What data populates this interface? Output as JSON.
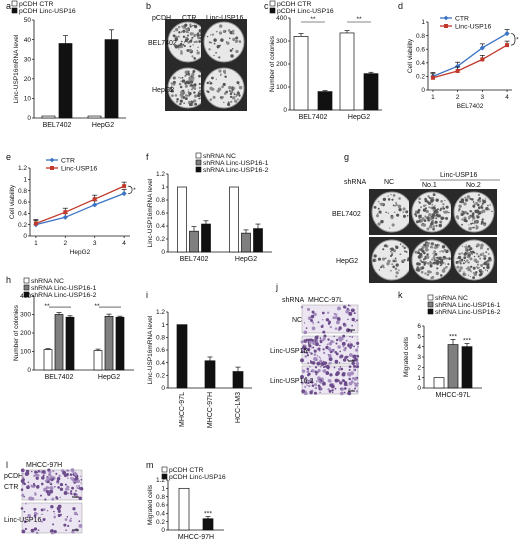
{
  "colors": {
    "ctr": "#3b73c4",
    "linc": "#c0392b",
    "black": "#111111",
    "grey": "#7f7f7f",
    "white": "#ffffff",
    "dish": "#d6d6d6",
    "stain": "#6d4c8c"
  },
  "panel_letters": [
    "a",
    "b",
    "c",
    "d",
    "e",
    "f",
    "g",
    "h",
    "i",
    "j",
    "k",
    "l",
    "m"
  ],
  "images": {
    "b": {
      "columns": [
        "pCDH",
        "CTR",
        "Linc-USP16"
      ],
      "rows": [
        "BEL7402",
        "HepG2"
      ]
    },
    "g": {
      "header": "shRNA",
      "nc": "NC",
      "group": "Linc-USP16",
      "columns": [
        "No.1",
        "No.2"
      ],
      "rows": [
        "BEL7402",
        "HepG2"
      ]
    },
    "j": {
      "header": "shRNA",
      "cell": "MHCC-97L",
      "rows": [
        "NC",
        "Linc-USP16-",
        "Linc-USP16-2"
      ]
    },
    "l": {
      "header": "pCDH",
      "cell": "MHCC-97H",
      "rows": [
        "CTR",
        "Linc-USP16"
      ]
    }
  },
  "chart_data": [
    {
      "id": "a",
      "type": "bar",
      "ylabel": "Linc-USP16mRNA level",
      "ylim": [
        0,
        50
      ],
      "yticks": [
        0,
        10,
        20,
        30,
        40,
        50
      ],
      "categories": [
        "BEL7402",
        "HepG2"
      ],
      "series": [
        {
          "name": "pCDH  CTR",
          "values": [
            1,
            1
          ],
          "err": [
            0,
            0
          ]
        },
        {
          "name": "pCDH  Linc-USP16",
          "values": [
            38,
            40
          ],
          "err": [
            4,
            5
          ]
        }
      ]
    },
    {
      "id": "c",
      "type": "bar",
      "ylabel": "Number of colonies",
      "ylim": [
        0,
        400
      ],
      "yticks": [
        0,
        100,
        200,
        300,
        400
      ],
      "categories": [
        "BEL7402",
        "HepG2"
      ],
      "series": [
        {
          "name": "pCDH  CTR",
          "values": [
            320,
            335
          ],
          "err": [
            12,
            10
          ]
        },
        {
          "name": "pCDH  Linc-USP16",
          "values": [
            80,
            158
          ],
          "err": [
            4,
            6
          ]
        }
      ],
      "significance": [
        "**",
        "**"
      ]
    },
    {
      "id": "d",
      "type": "line",
      "xlabel": "BEL7402",
      "ylabel": "Cell viability",
      "ylim": [
        0,
        1
      ],
      "yticks": [
        0,
        0.2,
        0.4,
        0.6,
        0.8,
        1
      ],
      "x": [
        1,
        2,
        3,
        4
      ],
      "series": [
        {
          "name": "CTR",
          "values": [
            0.2,
            0.35,
            0.62,
            0.83
          ]
        },
        {
          "name": "Linc-USP16",
          "values": [
            0.18,
            0.28,
            0.45,
            0.66
          ]
        }
      ],
      "significance": "*"
    },
    {
      "id": "e",
      "type": "line",
      "xlabel": "HepG2",
      "ylabel": "Cell viability",
      "ylim": [
        0,
        1.2
      ],
      "yticks": [
        0,
        0.2,
        0.4,
        0.6,
        0.8,
        1,
        1.2
      ],
      "x": [
        1,
        2,
        3,
        4
      ],
      "series": [
        {
          "name": "CTR",
          "values": [
            0.2,
            0.33,
            0.55,
            0.75
          ]
        },
        {
          "name": "Linc-USP16",
          "values": [
            0.22,
            0.42,
            0.65,
            0.88
          ]
        }
      ],
      "significance": "*"
    },
    {
      "id": "f",
      "type": "bar",
      "ylabel": "Linc-USP16mRNA level",
      "ylim": [
        0,
        1.2
      ],
      "yticks": [
        0,
        0.2,
        0.4,
        0.6,
        0.8,
        1,
        1.2
      ],
      "categories": [
        "BEL7402",
        "HepG2"
      ],
      "series": [
        {
          "name": "shRNA NC",
          "values": [
            1,
            1
          ],
          "err": [
            0,
            0
          ]
        },
        {
          "name": "shRNA Linc-USP16-1",
          "values": [
            0.32,
            0.29
          ],
          "err": [
            0.07,
            0.05
          ]
        },
        {
          "name": "shRNA Linc-USP16-2",
          "values": [
            0.43,
            0.36
          ],
          "err": [
            0.05,
            0.07
          ]
        }
      ]
    },
    {
      "id": "h",
      "type": "bar",
      "ylabel": "Number of colonies",
      "ylim": [
        0,
        400
      ],
      "yticks": [
        0,
        100,
        200,
        300,
        400
      ],
      "categories": [
        "BEL7402",
        "HepG2"
      ],
      "series": [
        {
          "name": "shRNA NC",
          "values": [
            110,
            105
          ],
          "err": [
            5,
            8
          ]
        },
        {
          "name": "shRNA  Linc-USP16-1",
          "values": [
            300,
            290
          ],
          "err": [
            10,
            12
          ]
        },
        {
          "name": "shRNA  Linc-USP16-2",
          "values": [
            285,
            285
          ],
          "err": [
            8,
            6
          ]
        }
      ],
      "significance": [
        "**",
        "**"
      ]
    },
    {
      "id": "i",
      "type": "bar",
      "ylabel": "Linc-USP16mRNA level",
      "ylim": [
        0,
        1.2
      ],
      "yticks": [
        0,
        0.2,
        0.4,
        0.6,
        0.8,
        1,
        1.2
      ],
      "categories": [
        "MHCC-97L",
        "MHCC-97H",
        "HCC-LM3"
      ],
      "values": [
        1.0,
        0.43,
        0.26
      ],
      "err": [
        0,
        0.06,
        0.07
      ]
    },
    {
      "id": "k",
      "type": "bar",
      "ylabel": "Migrated cells",
      "ylim": [
        0,
        6
      ],
      "yticks": [
        0,
        1,
        2,
        3,
        4,
        5,
        6
      ],
      "categories": [
        "MHCC-97L"
      ],
      "series": [
        {
          "name": "shRNA  NC",
          "values": [
            1
          ],
          "err": [
            0
          ]
        },
        {
          "name": "shRNA  Linc-USP16-1",
          "values": [
            4.2
          ],
          "err": [
            0.5
          ]
        },
        {
          "name": "shRNA  Linc-USP16-2",
          "values": [
            4.0
          ],
          "err": [
            0.3
          ]
        }
      ],
      "significance": [
        "***",
        "***"
      ]
    },
    {
      "id": "m",
      "type": "bar",
      "ylabel": "Migrated cells",
      "ylim": [
        0,
        1.2
      ],
      "yticks": [
        0,
        0.2,
        0.4,
        0.6,
        0.8,
        1,
        1.2
      ],
      "categories": [
        "MHCC-97H"
      ],
      "series": [
        {
          "name": "pCDH  CTR",
          "values": [
            1
          ],
          "err": [
            0
          ]
        },
        {
          "name": "pCDH  Linc-USP16",
          "values": [
            0.27
          ],
          "err": [
            0.05
          ]
        }
      ],
      "significance": [
        "***"
      ]
    }
  ]
}
